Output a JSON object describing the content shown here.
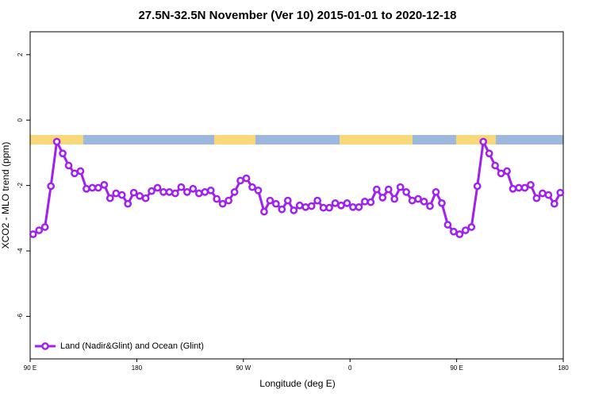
{
  "chart_data": {
    "type": "line",
    "title": "27.5N-32.5N November (Ver 10)   2015-01-01 to 2020-12-18",
    "xlabel": "Longitude (deg E)",
    "ylabel": "XCO2 - MLO trend (ppm)",
    "xlim": [
      90,
      540
    ],
    "ylim": [
      -7.3,
      2.7
    ],
    "xticks": [
      {
        "value": 90,
        "label": "90 E"
      },
      180,
      {
        "value": 270,
        "label": "90 W"
      },
      {
        "value": 360,
        "label": "0"
      },
      {
        "value": 450,
        "label": "90 E"
      },
      {
        "value": 540,
        "label": "180"
      }
    ],
    "yticks": [
      2,
      0,
      -2,
      -4,
      -6
    ],
    "legend_position": "bottomleft",
    "x": [
      92.5,
      97.5,
      102.5,
      107.5,
      112.5,
      117.5,
      122.5,
      127.5,
      132.5,
      137.5,
      142.5,
      147.5,
      152.5,
      157.5,
      162.5,
      167.5,
      172.5,
      177.5,
      182.5,
      187.5,
      192.5,
      197.5,
      202.5,
      207.5,
      212.5,
      217.5,
      222.5,
      227.5,
      232.5,
      237.5,
      242.5,
      247.5,
      252.5,
      257.5,
      262.5,
      267.5,
      272.5,
      277.5,
      282.5,
      287.5,
      292.5,
      297.5,
      302.5,
      307.5,
      312.5,
      317.5,
      322.5,
      327.5,
      332.5,
      337.5,
      342.5,
      347.5,
      352.5,
      357.5,
      362.5,
      367.5,
      372.5,
      377.5,
      382.5,
      387.5,
      392.5,
      397.5,
      402.5,
      407.5,
      412.5,
      417.5,
      422.5,
      427.5,
      432.5,
      437.5,
      442.5,
      447.5,
      452.5,
      457.5,
      462.5,
      467.5,
      472.5,
      477.5,
      482.5,
      487.5,
      492.5,
      497.5,
      502.5,
      507.5,
      512.5,
      517.5,
      522.5,
      527.5,
      532.5,
      537.5
    ],
    "series": [
      {
        "name": "Land (Nadir&Glint) and Ocean (Glint)",
        "color": "#a020f0",
        "values": [
          -3.49,
          -3.37,
          -3.27,
          -2.02,
          -0.66,
          -1.02,
          -1.39,
          -1.63,
          -1.56,
          -2.1,
          -2.07,
          -2.07,
          -1.98,
          -2.39,
          -2.24,
          -2.29,
          -2.56,
          -2.22,
          -2.32,
          -2.39,
          -2.17,
          -2.07,
          -2.2,
          -2.2,
          -2.24,
          -2.05,
          -2.2,
          -2.1,
          -2.24,
          -2.2,
          -2.15,
          -2.41,
          -2.56,
          -2.46,
          -2.2,
          -1.85,
          -1.78,
          -2.05,
          -2.15,
          -2.8,
          -2.46,
          -2.56,
          -2.73,
          -2.46,
          -2.76,
          -2.61,
          -2.66,
          -2.63,
          -2.46,
          -2.68,
          -2.68,
          -2.54,
          -2.61,
          -2.54,
          -2.66,
          -2.66,
          -2.49,
          -2.51,
          -2.12,
          -2.37,
          -2.12,
          -2.41,
          -2.05,
          -2.2,
          -2.46,
          -2.41,
          -2.49,
          -2.63,
          -2.2,
          -2.54,
          -3.2,
          -3.41,
          -3.49,
          -3.37,
          -3.27,
          -2.02,
          -0.66,
          -1.02,
          -1.39,
          -1.63,
          -1.56,
          -2.1,
          -2.07,
          -2.07,
          -1.98,
          -2.39,
          -2.24,
          -2.29,
          -2.56,
          -2.22
        ]
      }
    ]
  }
}
